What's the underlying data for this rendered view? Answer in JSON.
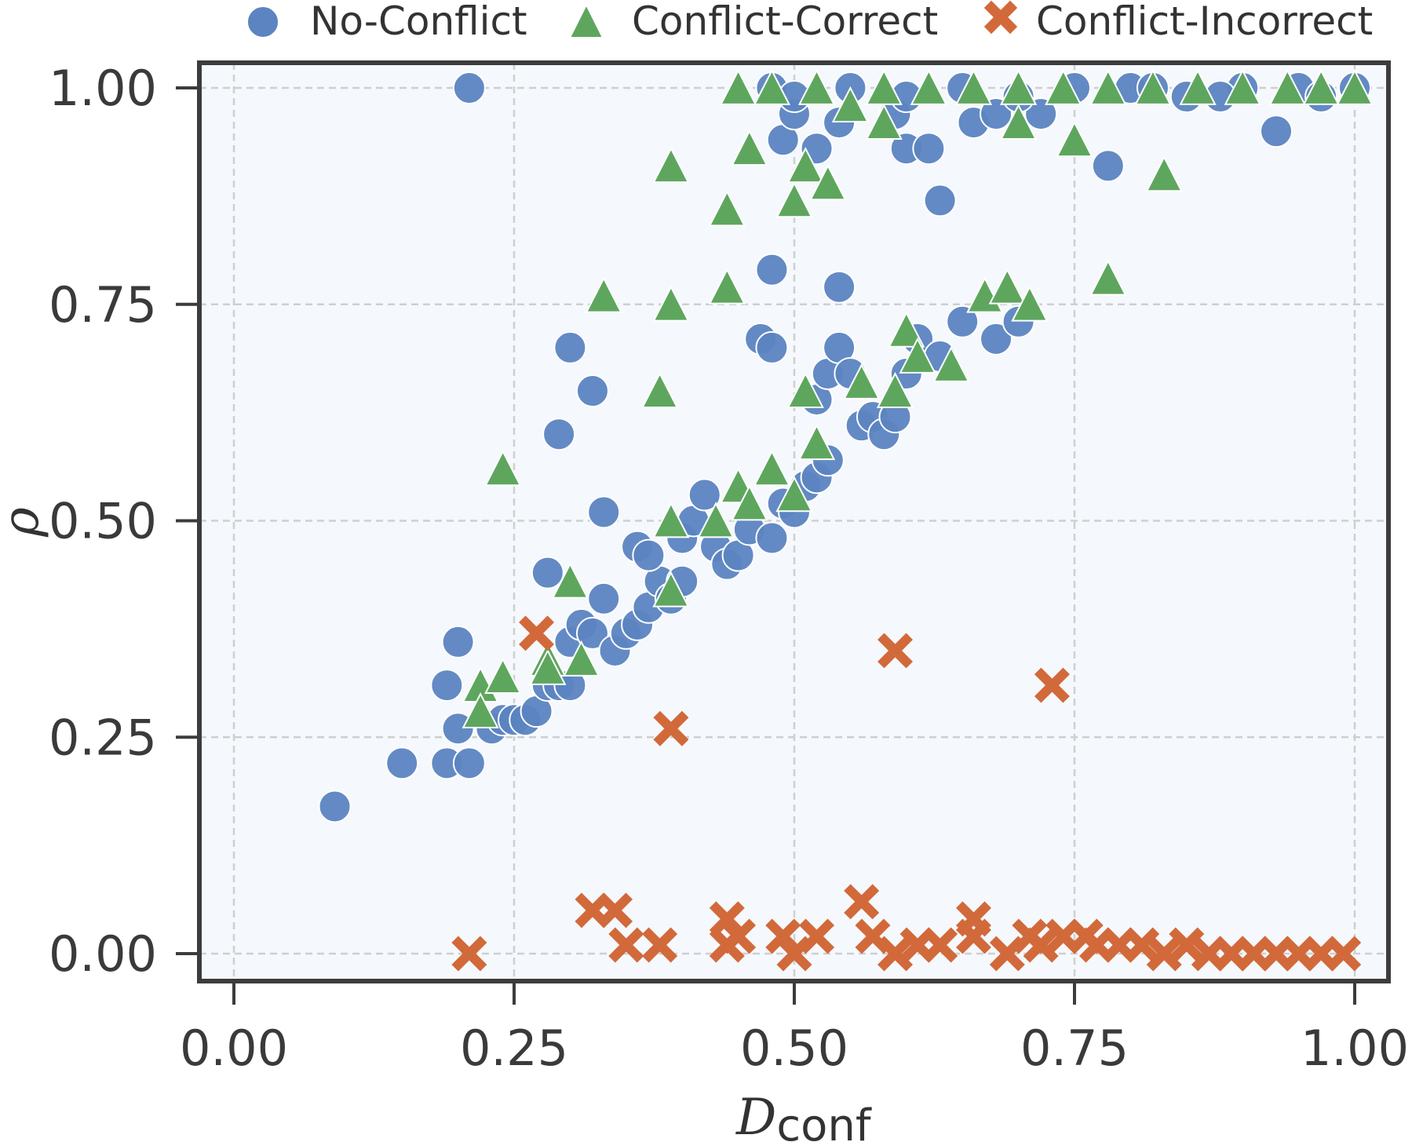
{
  "chart_data": {
    "type": "scatter",
    "xlabel": "D",
    "xlabel_subscript": "conf",
    "ylabel": "ρ",
    "xlim": [
      -0.03,
      1.03
    ],
    "ylim": [
      -0.03,
      1.03
    ],
    "xticks": [
      "0.00",
      "0.25",
      "0.50",
      "0.75",
      "1.00"
    ],
    "yticks": [
      "0.00",
      "0.25",
      "0.50",
      "0.75",
      "1.00"
    ],
    "grid": true,
    "legend_position": "top",
    "series": [
      {
        "name": "No-Conflict",
        "marker": "circle",
        "color": "#5b84c1",
        "points": [
          [
            0.09,
            0.17
          ],
          [
            0.15,
            0.22
          ],
          [
            0.19,
            0.22
          ],
          [
            0.19,
            0.31
          ],
          [
            0.2,
            0.36
          ],
          [
            0.21,
            0.22
          ],
          [
            0.2,
            0.26
          ],
          [
            0.21,
            1.0
          ],
          [
            0.23,
            0.26
          ],
          [
            0.24,
            0.27
          ],
          [
            0.25,
            0.27
          ],
          [
            0.26,
            0.27
          ],
          [
            0.27,
            0.28
          ],
          [
            0.28,
            0.31
          ],
          [
            0.29,
            0.31
          ],
          [
            0.3,
            0.31
          ],
          [
            0.28,
            0.44
          ],
          [
            0.29,
            0.6
          ],
          [
            0.3,
            0.7
          ],
          [
            0.32,
            0.65
          ],
          [
            0.33,
            0.51
          ],
          [
            0.3,
            0.36
          ],
          [
            0.31,
            0.38
          ],
          [
            0.32,
            0.37
          ],
          [
            0.33,
            0.41
          ],
          [
            0.34,
            0.35
          ],
          [
            0.35,
            0.37
          ],
          [
            0.36,
            0.38
          ],
          [
            0.37,
            0.4
          ],
          [
            0.38,
            0.43
          ],
          [
            0.36,
            0.47
          ],
          [
            0.37,
            0.46
          ],
          [
            0.39,
            0.41
          ],
          [
            0.4,
            0.43
          ],
          [
            0.4,
            0.48
          ],
          [
            0.41,
            0.5
          ],
          [
            0.42,
            0.53
          ],
          [
            0.43,
            0.47
          ],
          [
            0.44,
            0.45
          ],
          [
            0.45,
            0.46
          ],
          [
            0.46,
            0.49
          ],
          [
            0.48,
            0.48
          ],
          [
            0.49,
            0.52
          ],
          [
            0.5,
            0.51
          ],
          [
            0.47,
            0.71
          ],
          [
            0.48,
            0.7
          ],
          [
            0.48,
            0.79
          ],
          [
            0.51,
            0.54
          ],
          [
            0.52,
            0.55
          ],
          [
            0.53,
            0.57
          ],
          [
            0.52,
            0.64
          ],
          [
            0.53,
            0.67
          ],
          [
            0.54,
            0.7
          ],
          [
            0.55,
            0.67
          ],
          [
            0.56,
            0.61
          ],
          [
            0.57,
            0.62
          ],
          [
            0.58,
            0.6
          ],
          [
            0.59,
            0.62
          ],
          [
            0.6,
            0.67
          ],
          [
            0.61,
            0.71
          ],
          [
            0.63,
            0.69
          ],
          [
            0.65,
            0.73
          ],
          [
            0.68,
            0.71
          ],
          [
            0.7,
            0.73
          ],
          [
            0.54,
            0.77
          ],
          [
            0.49,
            0.94
          ],
          [
            0.5,
            0.97
          ],
          [
            0.52,
            0.93
          ],
          [
            0.54,
            0.96
          ],
          [
            0.59,
            0.97
          ],
          [
            0.6,
            0.93
          ],
          [
            0.62,
            0.93
          ],
          [
            0.63,
            0.87
          ],
          [
            0.66,
            0.96
          ],
          [
            0.68,
            0.97
          ],
          [
            0.72,
            0.97
          ],
          [
            0.78,
            0.91
          ],
          [
            0.93,
            0.95
          ],
          [
            0.48,
            1.0
          ],
          [
            0.5,
            0.99
          ],
          [
            0.55,
            1.0
          ],
          [
            0.6,
            0.99
          ],
          [
            0.65,
            1.0
          ],
          [
            0.7,
            0.99
          ],
          [
            0.75,
            1.0
          ],
          [
            0.8,
            1.0
          ],
          [
            0.85,
            0.99
          ],
          [
            0.9,
            1.0
          ],
          [
            0.95,
            1.0
          ],
          [
            0.97,
            0.99
          ],
          [
            1.0,
            1.0
          ],
          [
            0.88,
            0.99
          ],
          [
            0.82,
            1.0
          ]
        ]
      },
      {
        "name": "Conflict-Correct",
        "marker": "triangle",
        "color": "#5ea65e",
        "points": [
          [
            0.22,
            0.31
          ],
          [
            0.22,
            0.28
          ],
          [
            0.24,
            0.32
          ],
          [
            0.24,
            0.56
          ],
          [
            0.28,
            0.34
          ],
          [
            0.28,
            0.33
          ],
          [
            0.3,
            0.43
          ],
          [
            0.31,
            0.34
          ],
          [
            0.33,
            0.76
          ],
          [
            0.38,
            0.65
          ],
          [
            0.39,
            0.75
          ],
          [
            0.39,
            0.91
          ],
          [
            0.39,
            0.42
          ],
          [
            0.39,
            0.5
          ],
          [
            0.43,
            0.5
          ],
          [
            0.44,
            0.77
          ],
          [
            0.44,
            0.86
          ],
          [
            0.45,
            0.54
          ],
          [
            0.46,
            0.52
          ],
          [
            0.46,
            0.93
          ],
          [
            0.48,
            0.56
          ],
          [
            0.5,
            0.53
          ],
          [
            0.5,
            0.87
          ],
          [
            0.51,
            0.65
          ],
          [
            0.51,
            0.91
          ],
          [
            0.52,
            0.59
          ],
          [
            0.53,
            0.89
          ],
          [
            0.56,
            0.66
          ],
          [
            0.58,
            0.96
          ],
          [
            0.59,
            0.65
          ],
          [
            0.6,
            0.72
          ],
          [
            0.61,
            0.69
          ],
          [
            0.64,
            0.68
          ],
          [
            0.67,
            0.76
          ],
          [
            0.69,
            0.77
          ],
          [
            0.7,
            0.96
          ],
          [
            0.71,
            0.75
          ],
          [
            0.75,
            0.94
          ],
          [
            0.78,
            0.78
          ],
          [
            0.83,
            0.9
          ],
          [
            0.45,
            1.0
          ],
          [
            0.48,
            1.0
          ],
          [
            0.52,
            1.0
          ],
          [
            0.55,
            0.98
          ],
          [
            0.58,
            1.0
          ],
          [
            0.62,
            1.0
          ],
          [
            0.66,
            1.0
          ],
          [
            0.7,
            1.0
          ],
          [
            0.74,
            1.0
          ],
          [
            0.78,
            1.0
          ],
          [
            0.82,
            1.0
          ],
          [
            0.86,
            1.0
          ],
          [
            0.9,
            1.0
          ],
          [
            0.94,
            1.0
          ],
          [
            0.97,
            1.0
          ],
          [
            1.0,
            1.0
          ]
        ]
      },
      {
        "name": "Conflict-Incorrect",
        "marker": "x",
        "color": "#d2693a",
        "points": [
          [
            0.21,
            0.0
          ],
          [
            0.27,
            0.37
          ],
          [
            0.39,
            0.26
          ],
          [
            0.59,
            0.35
          ],
          [
            0.73,
            0.31
          ],
          [
            0.32,
            0.05
          ],
          [
            0.34,
            0.05
          ],
          [
            0.35,
            0.01
          ],
          [
            0.38,
            0.01
          ],
          [
            0.44,
            0.04
          ],
          [
            0.44,
            0.01
          ],
          [
            0.45,
            0.02
          ],
          [
            0.49,
            0.02
          ],
          [
            0.5,
            0.0
          ],
          [
            0.52,
            0.02
          ],
          [
            0.56,
            0.06
          ],
          [
            0.57,
            0.02
          ],
          [
            0.59,
            0.0
          ],
          [
            0.61,
            0.01
          ],
          [
            0.63,
            0.01
          ],
          [
            0.66,
            0.04
          ],
          [
            0.66,
            0.02
          ],
          [
            0.69,
            0.0
          ],
          [
            0.71,
            0.02
          ],
          [
            0.72,
            0.01
          ],
          [
            0.74,
            0.02
          ],
          [
            0.76,
            0.02
          ],
          [
            0.77,
            0.01
          ],
          [
            0.79,
            0.01
          ],
          [
            0.81,
            0.01
          ],
          [
            0.83,
            0.0
          ],
          [
            0.85,
            0.01
          ],
          [
            0.87,
            0.0
          ],
          [
            0.89,
            0.0
          ],
          [
            0.91,
            0.0
          ],
          [
            0.93,
            0.0
          ],
          [
            0.95,
            0.0
          ],
          [
            0.97,
            0.0
          ],
          [
            0.99,
            0.0
          ]
        ]
      }
    ]
  }
}
